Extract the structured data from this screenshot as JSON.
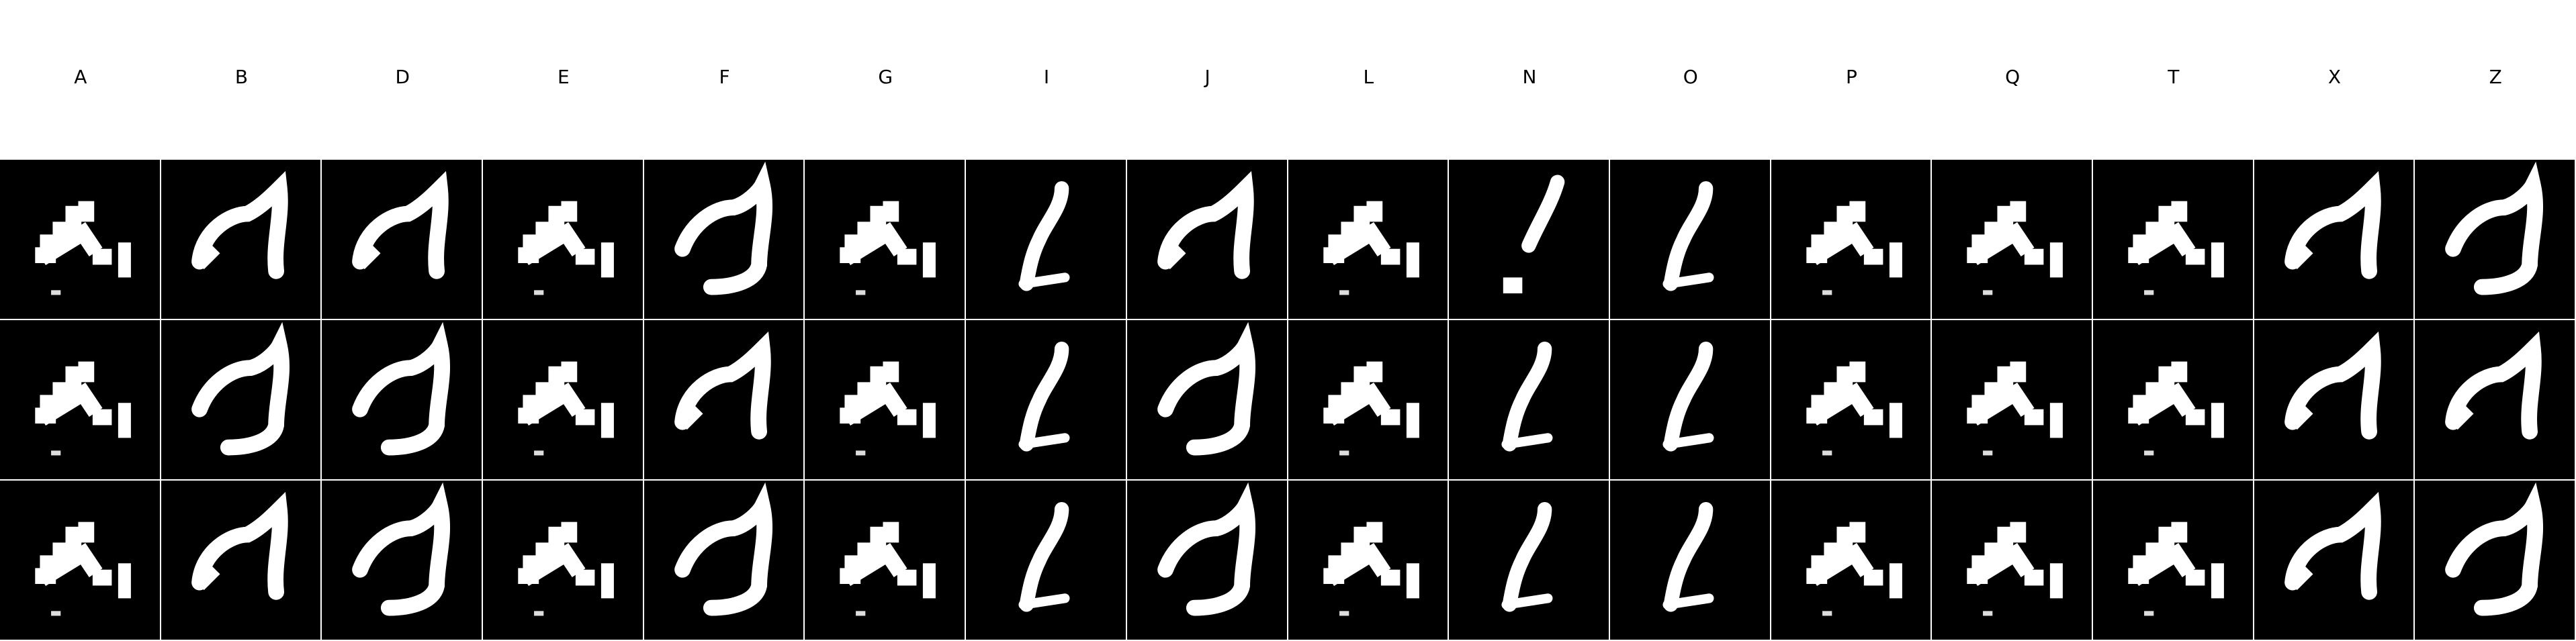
{
  "columns": [
    "A",
    "B",
    "D",
    "E",
    "F",
    "G",
    "I",
    "J",
    "L",
    "N",
    "O",
    "P",
    "Q",
    "T",
    "X",
    "Z"
  ],
  "rows": 3,
  "colors": {
    "background": "#000000",
    "foreground": "#ffffff",
    "grid_line": "#ffffff"
  },
  "glyph_styles": [
    "stairs",
    "arch",
    "slash",
    "dot-slash",
    "z-shape"
  ],
  "cells": [
    [
      "stairs",
      "arch",
      "arch",
      "stairs",
      "z-shape",
      "stairs",
      "slash",
      "arch",
      "stairs",
      "dot-slash",
      "slash",
      "stairs",
      "stairs",
      "stairs",
      "arch",
      "z-shape"
    ],
    [
      "stairs",
      "z-shape",
      "z-shape",
      "stairs",
      "arch",
      "stairs",
      "slash",
      "z-shape",
      "stairs",
      "slash",
      "slash",
      "stairs",
      "stairs",
      "stairs",
      "arch",
      "arch"
    ],
    [
      "stairs",
      "arch",
      "z-shape",
      "stairs",
      "z-shape",
      "stairs",
      "slash",
      "z-shape",
      "stairs",
      "slash",
      "slash",
      "stairs",
      "stairs",
      "stairs",
      "arch",
      "z-shape"
    ]
  ]
}
